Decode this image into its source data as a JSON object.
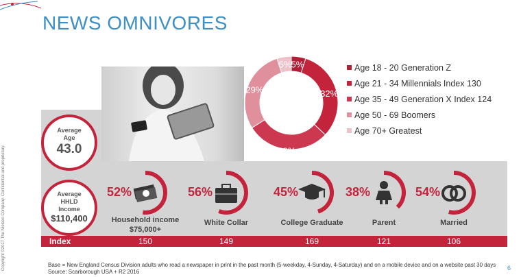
{
  "title": "NEWS OMNIVORES",
  "copyright": "Copyright ©2017 The Nielsen Company. Confidential and proprietary.",
  "average_age": {
    "label": "Average Age",
    "value": "43.0"
  },
  "average_income": {
    "label": "Average HHLD Income",
    "value": "$110,400"
  },
  "chart_data": [
    {
      "type": "pie",
      "categories": [
        "Age 18 - 20 Generation Z",
        "Age 21 - 34 Millennials Index 130",
        "Age 35 - 49 Generation X Index 124",
        "Age 50 - 69 Boomers",
        "Age 70+ Greatest"
      ],
      "labels": [
        "5%",
        "32%",
        "29%",
        "29%",
        "5%"
      ],
      "values": [
        5,
        32,
        29,
        29,
        5
      ],
      "colors": [
        "#b01f35",
        "#c3233b",
        "#cc3850",
        "#e08f9c",
        "#efc2c9"
      ],
      "legend": "right"
    },
    {
      "type": "bar",
      "categories": [
        "Household income $75,000+",
        "White Collar",
        "College Graduate",
        "Parent",
        "Married"
      ],
      "values": [
        52,
        56,
        45,
        38,
        54
      ],
      "labels": [
        "52%",
        "56%",
        "45%",
        "38%",
        "54%"
      ],
      "index_label": "Index",
      "index_values": [
        "150",
        "149",
        "169",
        "121",
        "106"
      ]
    }
  ],
  "categories_display": [
    {
      "line1": "Household income",
      "line2": "$75,000+",
      "icon": "money-icon"
    },
    {
      "line1": "White Collar",
      "line2": "",
      "icon": "briefcase-icon"
    },
    {
      "line1": "College Graduate",
      "line2": "",
      "icon": "graduation-cap-icon"
    },
    {
      "line1": "Parent",
      "line2": "",
      "icon": "child-icon"
    },
    {
      "line1": "Married",
      "line2": "",
      "icon": "rings-icon"
    }
  ],
  "footnote": {
    "line1": "Base = New England Census Division adults who read a newspaper in print in the past month (5-weekday, 4-Sunday, 4-Saturday) and on a mobile device and on a website past 30 days",
    "line2": "Source: Scarborough USA +  R2 2016"
  },
  "page_number": "6",
  "colors": {
    "accent": "#c3233b",
    "title": "#3d8fc4",
    "band": "#d4d4d4"
  }
}
